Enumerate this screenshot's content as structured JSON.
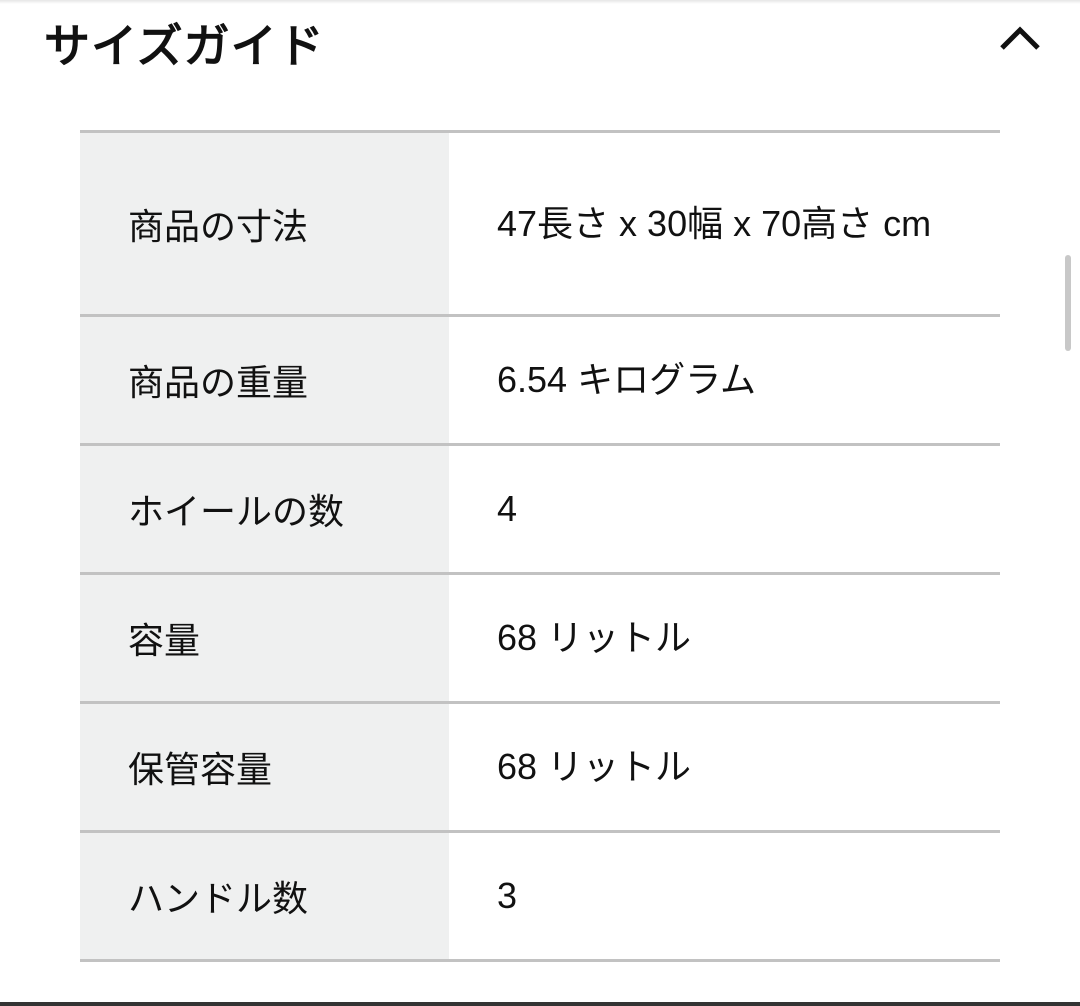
{
  "header": {
    "title": "サイズガイド",
    "toggle_icon": "chevron-up-icon"
  },
  "spec_rows": [
    {
      "label": "商品の寸法",
      "value": "47長さ x 30幅 x 70高さ cm"
    },
    {
      "label": "商品の重量",
      "value": "6.54 キログラム"
    },
    {
      "label": "ホイールの数",
      "value": "4"
    },
    {
      "label": "容量",
      "value": "68 リットル"
    },
    {
      "label": "保管容量",
      "value": "68 リットル"
    },
    {
      "label": "ハンドル数",
      "value": "3"
    }
  ]
}
